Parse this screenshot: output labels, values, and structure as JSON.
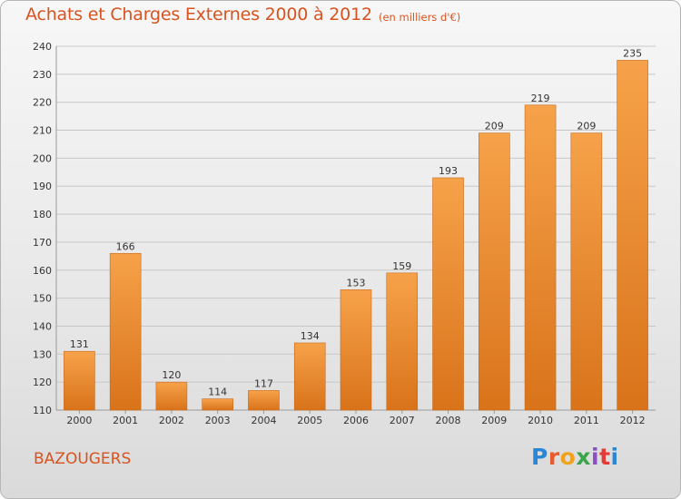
{
  "title": "Achats et Charges Externes 2000 à 2012",
  "subtitle": "(en milliers d'€)",
  "commune": "BAZOUGERS",
  "brand": {
    "letters": [
      "P",
      "r",
      "o",
      "x",
      "i",
      "t",
      "i"
    ],
    "colors": [
      "#2a86d6",
      "#e65a2c",
      "#f0a21c",
      "#3aa64a",
      "#8a4fc2",
      "#e53935",
      "#2a86d6"
    ]
  },
  "colors": {
    "title": "#d8531f",
    "bar_top": "#f6a24a",
    "bar_bottom": "#d9731a",
    "grid": "#c7c7c7"
  },
  "chart_data": {
    "type": "bar",
    "title": "Achats et Charges Externes 2000 à 2012",
    "subtitle": "(en milliers d'€)",
    "xlabel": "",
    "ylabel": "",
    "categories": [
      "2000",
      "2001",
      "2002",
      "2003",
      "2004",
      "2005",
      "2006",
      "2007",
      "2008",
      "2009",
      "2010",
      "2011",
      "2012"
    ],
    "values": [
      131,
      166,
      120,
      114,
      117,
      134,
      153,
      159,
      193,
      209,
      219,
      209,
      235
    ],
    "ylim": [
      110,
      240
    ],
    "yticks": [
      110,
      120,
      130,
      140,
      150,
      160,
      170,
      180,
      190,
      200,
      210,
      220,
      230,
      240
    ],
    "grid": true,
    "data_labels": true,
    "legend": "none"
  }
}
